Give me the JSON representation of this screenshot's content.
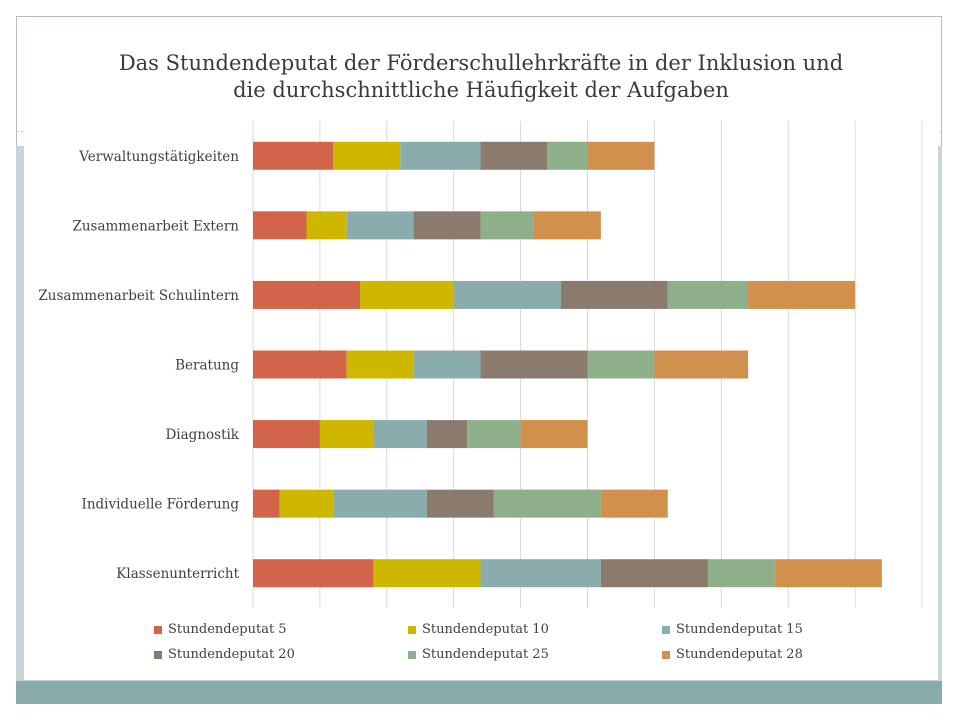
{
  "colors": {
    "s5": "#d2644a",
    "s10": "#cfb700",
    "s15": "#8aacac",
    "s20": "#8b7b6f",
    "s25": "#8db08b",
    "s28": "#d1904c",
    "grid": "#d9d9d9"
  },
  "chart_data": {
    "type": "bar",
    "orientation": "horizontal",
    "stacked": true,
    "title": "Das Stundendeputat der Förderschullehrkräfte in der Inklusion und die durchschnittliche Häufigkeit der Aufgaben",
    "title_lines": [
      "Das Stundendeputat der Förderschullehrkräfte in der Inklusion und",
      "die durchschnittliche Häufigkeit der Aufgaben"
    ],
    "xlabel": "",
    "ylabel": "",
    "xlim": [
      0,
      50
    ],
    "grid": true,
    "legend": "bottom",
    "categories": [
      "Verwaltungstätigkeiten",
      "Zusammenarbeit Extern",
      "Zusammenarbeit Schulintern",
      "Beratung",
      "Diagnostik",
      "Individuelle Förderung",
      "Klassenunterricht"
    ],
    "series": [
      {
        "name": "Stundendeputat 5",
        "color_key": "s5",
        "values": [
          6,
          4,
          8,
          7,
          5,
          2,
          9
        ]
      },
      {
        "name": "Stundendeputat 10",
        "color_key": "s10",
        "values": [
          5,
          3,
          7,
          5,
          4,
          4,
          8
        ]
      },
      {
        "name": "Stundendeputat 15",
        "color_key": "s15",
        "values": [
          6,
          5,
          8,
          5,
          4,
          7,
          9
        ]
      },
      {
        "name": "Stundendeputat 20",
        "color_key": "s20",
        "values": [
          5,
          5,
          8,
          8,
          3,
          5,
          8
        ]
      },
      {
        "name": "Stundendeputat 25",
        "color_key": "s25",
        "values": [
          3,
          4,
          6,
          5,
          4,
          8,
          5
        ]
      },
      {
        "name": "Stundendeputat 28",
        "color_key": "s28",
        "values": [
          5,
          5,
          8,
          7,
          5,
          5,
          8
        ]
      }
    ]
  }
}
